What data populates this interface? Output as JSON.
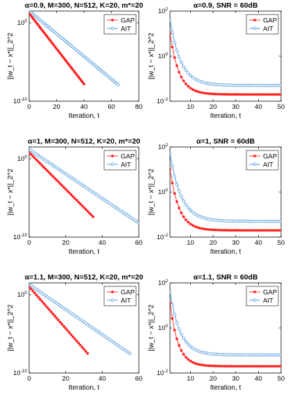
{
  "colors": {
    "GAP": "#ff2020",
    "AIT": "#3d8fd6"
  },
  "chart_data": [
    {
      "type": "line",
      "title": "α=0.9, M=300, N=512, K=20, m*=20",
      "xlabel": "Iteration, t",
      "ylabel": "||w_t − x*||_2^2",
      "xlim": [
        0,
        80
      ],
      "xticks": [
        0,
        20,
        40,
        60,
        80
      ],
      "ylim_log10": [
        -10,
        1.5
      ],
      "yticks_log10": [
        0,
        -10
      ],
      "yscale": "log",
      "legend": "top-right",
      "series": [
        {
          "name": "GAP",
          "t_end": 40,
          "log10_start": 1.2,
          "log10_end": -7.8
        },
        {
          "name": "AIT",
          "t_end": 65,
          "log10_start": 1.5,
          "log10_end": -7.9
        }
      ]
    },
    {
      "type": "line",
      "title": "α=0.9, SNR = 60dB",
      "xlabel": "Iteration, t",
      "ylabel": "||w_t − x*||_2^2",
      "xlim": [
        1,
        50
      ],
      "xticks": [
        10,
        20,
        30,
        40,
        50
      ],
      "ylim_log10": [
        -2,
        2
      ],
      "yticks_log10": [
        2,
        0,
        -2
      ],
      "yscale": "log",
      "legend": "top-right",
      "series": [
        {
          "name": "GAP",
          "log10_start": 1.0,
          "log10_floor": -1.7,
          "tau": 4.0
        },
        {
          "name": "AIT",
          "log10_start": 1.6,
          "log10_floor": -1.3,
          "tau": 4.8
        }
      ]
    },
    {
      "type": "line",
      "title": "α=1, M=300, N=512, K=20, m*=20",
      "xlabel": "Iteration, t",
      "ylabel": "||w_t − x*||_2^2",
      "xlim": [
        0,
        60
      ],
      "xticks": [
        0,
        20,
        40,
        60
      ],
      "ylim_log10": [
        -10,
        1.5
      ],
      "yticks_log10": [
        0,
        -10
      ],
      "yscale": "log",
      "legend": "top-right",
      "series": [
        {
          "name": "GAP",
          "t_end": 35,
          "log10_start": 0.8,
          "log10_end": -7.4
        },
        {
          "name": "AIT",
          "t_end": 60,
          "log10_start": 1.2,
          "log10_end": -8.2
        }
      ]
    },
    {
      "type": "line",
      "title": "α=1, SNR = 60dB",
      "xlabel": "Iteration, t",
      "ylabel": "||w_t − x*||_2^2",
      "xlim": [
        1,
        50
      ],
      "xticks": [
        10,
        20,
        30,
        40,
        50
      ],
      "ylim_log10": [
        -2,
        2
      ],
      "yticks_log10": [
        2,
        0,
        -2
      ],
      "yscale": "log",
      "legend": "top-right",
      "series": [
        {
          "name": "GAP",
          "log10_start": 1.0,
          "log10_floor": -1.7,
          "tau": 4.0
        },
        {
          "name": "AIT",
          "log10_start": 1.7,
          "log10_floor": -1.3,
          "tau": 5.0
        }
      ]
    },
    {
      "type": "line",
      "title": "α=1.1, M=300, N=512, K=20, m*=20",
      "xlabel": "Iteration, t",
      "ylabel": "||w_t − x*||_2^2",
      "xlim": [
        0,
        60
      ],
      "xticks": [
        0,
        20,
        40,
        60
      ],
      "ylim_log10": [
        -10,
        1.5
      ],
      "yticks_log10": [
        0,
        -10
      ],
      "yscale": "log",
      "legend": "top-right",
      "series": [
        {
          "name": "GAP",
          "t_end": 32,
          "log10_start": 1.0,
          "log10_end": -7.5
        },
        {
          "name": "AIT",
          "t_end": 55,
          "log10_start": 1.3,
          "log10_end": -7.5
        }
      ]
    },
    {
      "type": "line",
      "title": "α=1.1, SNR = 60dB",
      "xlabel": "Iteration, t",
      "ylabel": "||w_t − x*||_2^2",
      "xlim": [
        1,
        50
      ],
      "xticks": [
        10,
        20,
        30,
        40,
        50
      ],
      "ylim_log10": [
        -2,
        2
      ],
      "yticks_log10": [
        2,
        0,
        -2
      ],
      "yscale": "log",
      "legend": "top-right",
      "series": [
        {
          "name": "GAP",
          "log10_start": 1.1,
          "log10_floor": -1.7,
          "tau": 3.6
        },
        {
          "name": "AIT",
          "log10_start": 1.6,
          "log10_floor": -1.2,
          "tau": 4.5
        }
      ]
    }
  ]
}
